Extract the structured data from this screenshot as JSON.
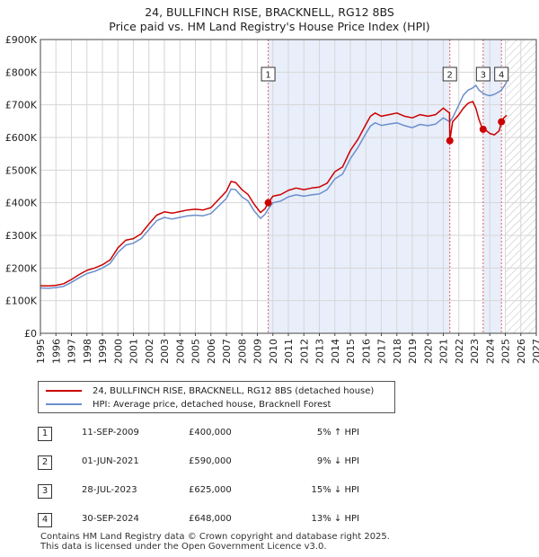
{
  "title_line1": "24, BULLFINCH RISE, BRACKNELL, RG12 8BS",
  "title_line2": "Price paid vs. HM Land Registry's House Price Index (HPI)",
  "colors": {
    "property_line": "#cc0000",
    "hpi_line": "#6b8fcc",
    "shade": "#e8eefa",
    "marker_dash": "#e06060",
    "grid": "#d6d6d6"
  },
  "chart_data": {
    "type": "line",
    "title": "Price paid vs. HM Land Registry's House Price Index (HPI)",
    "xlim": [
      1995,
      2027
    ],
    "ylim": [
      0,
      900000
    ],
    "x_ticks": [
      "1995",
      "1996",
      "1997",
      "1998",
      "1999",
      "2000",
      "2001",
      "2002",
      "2003",
      "2004",
      "2005",
      "2006",
      "2007",
      "2008",
      "2009",
      "2010",
      "2011",
      "2012",
      "2013",
      "2014",
      "2015",
      "2016",
      "2017",
      "2018",
      "2019",
      "2020",
      "2021",
      "2022",
      "2023",
      "2024",
      "2025",
      "2026",
      "2027"
    ],
    "y_ticks": [
      {
        "value": 0,
        "label": "£0"
      },
      {
        "value": 100000,
        "label": "£100K"
      },
      {
        "value": 200000,
        "label": "£200K"
      },
      {
        "value": 300000,
        "label": "£300K"
      },
      {
        "value": 400000,
        "label": "£400K"
      },
      {
        "value": 500000,
        "label": "£500K"
      },
      {
        "value": 600000,
        "label": "£600K"
      },
      {
        "value": 700000,
        "label": "£700K"
      },
      {
        "value": 800000,
        "label": "£800K"
      },
      {
        "value": 900000,
        "label": "£900K"
      }
    ],
    "grid": true,
    "shaded_ranges": [
      [
        2009.7,
        2021.42
      ],
      [
        2023.57,
        2024.75
      ]
    ],
    "future_hatch_start": 2025.0,
    "series": [
      {
        "name": "24, BULLFINCH RISE, BRACKNELL, RG12 8BS (detached house)",
        "x": [
          1995,
          1995.5,
          1996,
          1996.5,
          1997,
          1997.5,
          1998,
          1998.5,
          1999,
          1999.5,
          2000,
          2000.5,
          2001,
          2001.5,
          2002,
          2002.5,
          2003,
          2003.5,
          2004,
          2004.5,
          2005,
          2005.5,
          2006,
          2006.5,
          2007,
          2007.3,
          2007.6,
          2008,
          2008.4,
          2008.8,
          2009.2,
          2009.5,
          2009.7,
          2010,
          2010.5,
          2011,
          2011.5,
          2012,
          2012.5,
          2013,
          2013.5,
          2014,
          2014.5,
          2015,
          2015.5,
          2016,
          2016.3,
          2016.6,
          2017,
          2017.5,
          2018,
          2018.5,
          2019,
          2019.5,
          2020,
          2020.5,
          2021,
          2021.2,
          2021.4,
          2021.42,
          2021.6,
          2022,
          2022.3,
          2022.6,
          2022.9,
          2023.1,
          2023.3,
          2023.5,
          2023.57,
          2023.8,
          2024,
          2024.3,
          2024.6,
          2024.75,
          2024.9,
          2025.1
        ],
        "values": [
          146000,
          145000,
          147000,
          152000,
          165000,
          180000,
          193000,
          200000,
          210000,
          225000,
          262000,
          285000,
          290000,
          305000,
          335000,
          362000,
          372000,
          368000,
          373000,
          378000,
          380000,
          378000,
          385000,
          410000,
          435000,
          465000,
          462000,
          440000,
          425000,
          395000,
          370000,
          382000,
          400000,
          420000,
          425000,
          438000,
          445000,
          440000,
          445000,
          448000,
          460000,
          495000,
          510000,
          560000,
          595000,
          640000,
          665000,
          675000,
          665000,
          670000,
          675000,
          665000,
          660000,
          670000,
          665000,
          670000,
          690000,
          682000,
          675000,
          590000,
          648000,
          670000,
          690000,
          705000,
          710000,
          690000,
          655000,
          630000,
          625000,
          620000,
          612000,
          608000,
          620000,
          648000,
          660000,
          668000
        ]
      },
      {
        "name": "HPI: Average price, detached house, Bracknell Forest",
        "x": [
          1995,
          1995.5,
          1996,
          1996.5,
          1997,
          1997.5,
          1998,
          1998.5,
          1999,
          1999.5,
          2000,
          2000.5,
          2001,
          2001.5,
          2002,
          2002.5,
          2003,
          2003.5,
          2004,
          2004.5,
          2005,
          2005.5,
          2006,
          2006.5,
          2007,
          2007.3,
          2007.6,
          2008,
          2008.4,
          2008.8,
          2009.2,
          2009.5,
          2009.7,
          2010,
          2010.5,
          2011,
          2011.5,
          2012,
          2012.5,
          2013,
          2013.5,
          2014,
          2014.5,
          2015,
          2015.5,
          2016,
          2016.3,
          2016.6,
          2017,
          2017.5,
          2018,
          2018.5,
          2019,
          2019.5,
          2020,
          2020.5,
          2021,
          2021.42,
          2021.6,
          2022,
          2022.3,
          2022.6,
          2022.9,
          2023.1,
          2023.3,
          2023.57,
          2023.8,
          2024,
          2024.3,
          2024.6,
          2024.75,
          2025.1
        ],
        "values": [
          139000,
          138000,
          140000,
          144000,
          156000,
          170000,
          183000,
          190000,
          200000,
          214000,
          248000,
          270000,
          276000,
          290000,
          318000,
          345000,
          355000,
          350000,
          355000,
          360000,
          362000,
          360000,
          367000,
          390000,
          413000,
          442000,
          440000,
          418000,
          405000,
          375000,
          352000,
          365000,
          381000,
          400000,
          405000,
          418000,
          424000,
          420000,
          424000,
          427000,
          440000,
          473000,
          488000,
          535000,
          570000,
          612000,
          635000,
          645000,
          637000,
          641000,
          645000,
          636000,
          630000,
          640000,
          636000,
          641000,
          660000,
          648000,
          660000,
          700000,
          730000,
          745000,
          752000,
          760000,
          745000,
          735000,
          730000,
          728000,
          732000,
          740000,
          745000,
          770000
        ]
      }
    ],
    "transactions": [
      {
        "num": "1",
        "x": 2009.7,
        "price": 400000,
        "date": "11-SEP-2009",
        "price_label": "£400,000",
        "hpi_label": "5% ↑ HPI"
      },
      {
        "num": "2",
        "x": 2021.42,
        "price": 590000,
        "date": "01-JUN-2021",
        "price_label": "£590,000",
        "hpi_label": "9% ↓ HPI"
      },
      {
        "num": "3",
        "x": 2023.57,
        "price": 625000,
        "date": "28-JUL-2023",
        "price_label": "£625,000",
        "hpi_label": "15% ↓ HPI"
      },
      {
        "num": "4",
        "x": 2024.75,
        "price": 648000,
        "date": "30-SEP-2024",
        "price_label": "£648,000",
        "hpi_label": "13% ↓ HPI"
      }
    ]
  },
  "footer_line1": "Contains HM Land Registry data © Crown copyright and database right 2025.",
  "footer_line2": "This data is licensed under the Open Government Licence v3.0."
}
